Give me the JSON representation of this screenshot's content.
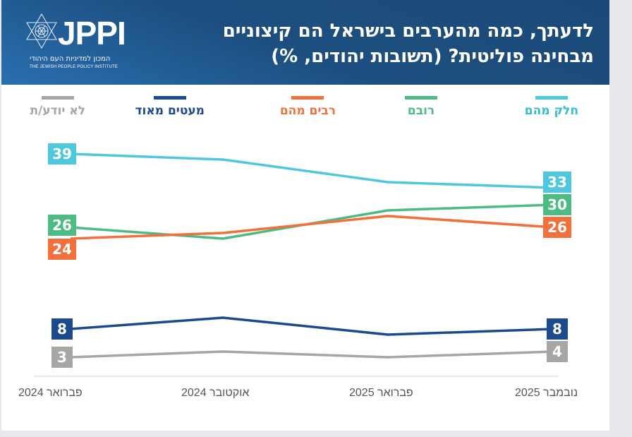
{
  "header": {
    "logo_text": "JPPI",
    "logo_hebrew": "המכון למדיניות העם היהודי",
    "logo_english": "THE JEWISH PEOPLE POLICY INSTITUTE",
    "title_line1": "לדעתך, כמה מהערבים בישראל הם קיצוניים",
    "title_line2": "מבחינה פוליטית? (תשובות יהודים, %)"
  },
  "chart_data": {
    "type": "line",
    "title": "לדעתך, כמה מהערבים בישראל הם קיצוניים מבחינה פוליטית? (תשובות יהודים, %)",
    "xlabel": "",
    "ylabel": "",
    "x": [
      "פברואר 2024",
      "אוקטובר 2024",
      "פברואר 2025",
      "נובמבר 2025"
    ],
    "ylim": [
      0,
      45
    ],
    "grid": false,
    "legend_position": "top",
    "series": [
      {
        "name": "חלק מהם",
        "color": "#4fc8dd",
        "values": [
          39,
          38,
          34,
          33
        ],
        "labeled": [
          true,
          false,
          false,
          true
        ]
      },
      {
        "name": "רובם",
        "color": "#4cbb84",
        "values": [
          26,
          24,
          29,
          30
        ],
        "labeled": [
          true,
          false,
          false,
          true
        ]
      },
      {
        "name": "רבים מהם",
        "color": "#f2703b",
        "values": [
          24,
          25,
          28,
          26
        ],
        "labeled": [
          true,
          false,
          false,
          true
        ]
      },
      {
        "name": "מעטים מאוד",
        "color": "#1b4a8e",
        "values": [
          8,
          10,
          7,
          8
        ],
        "labeled": [
          true,
          false,
          false,
          true
        ]
      },
      {
        "name": "לא יודע/ת",
        "color": "#a6a6a6",
        "values": [
          3,
          4,
          3,
          4
        ],
        "labeled": [
          true,
          false,
          false,
          true
        ]
      }
    ]
  }
}
